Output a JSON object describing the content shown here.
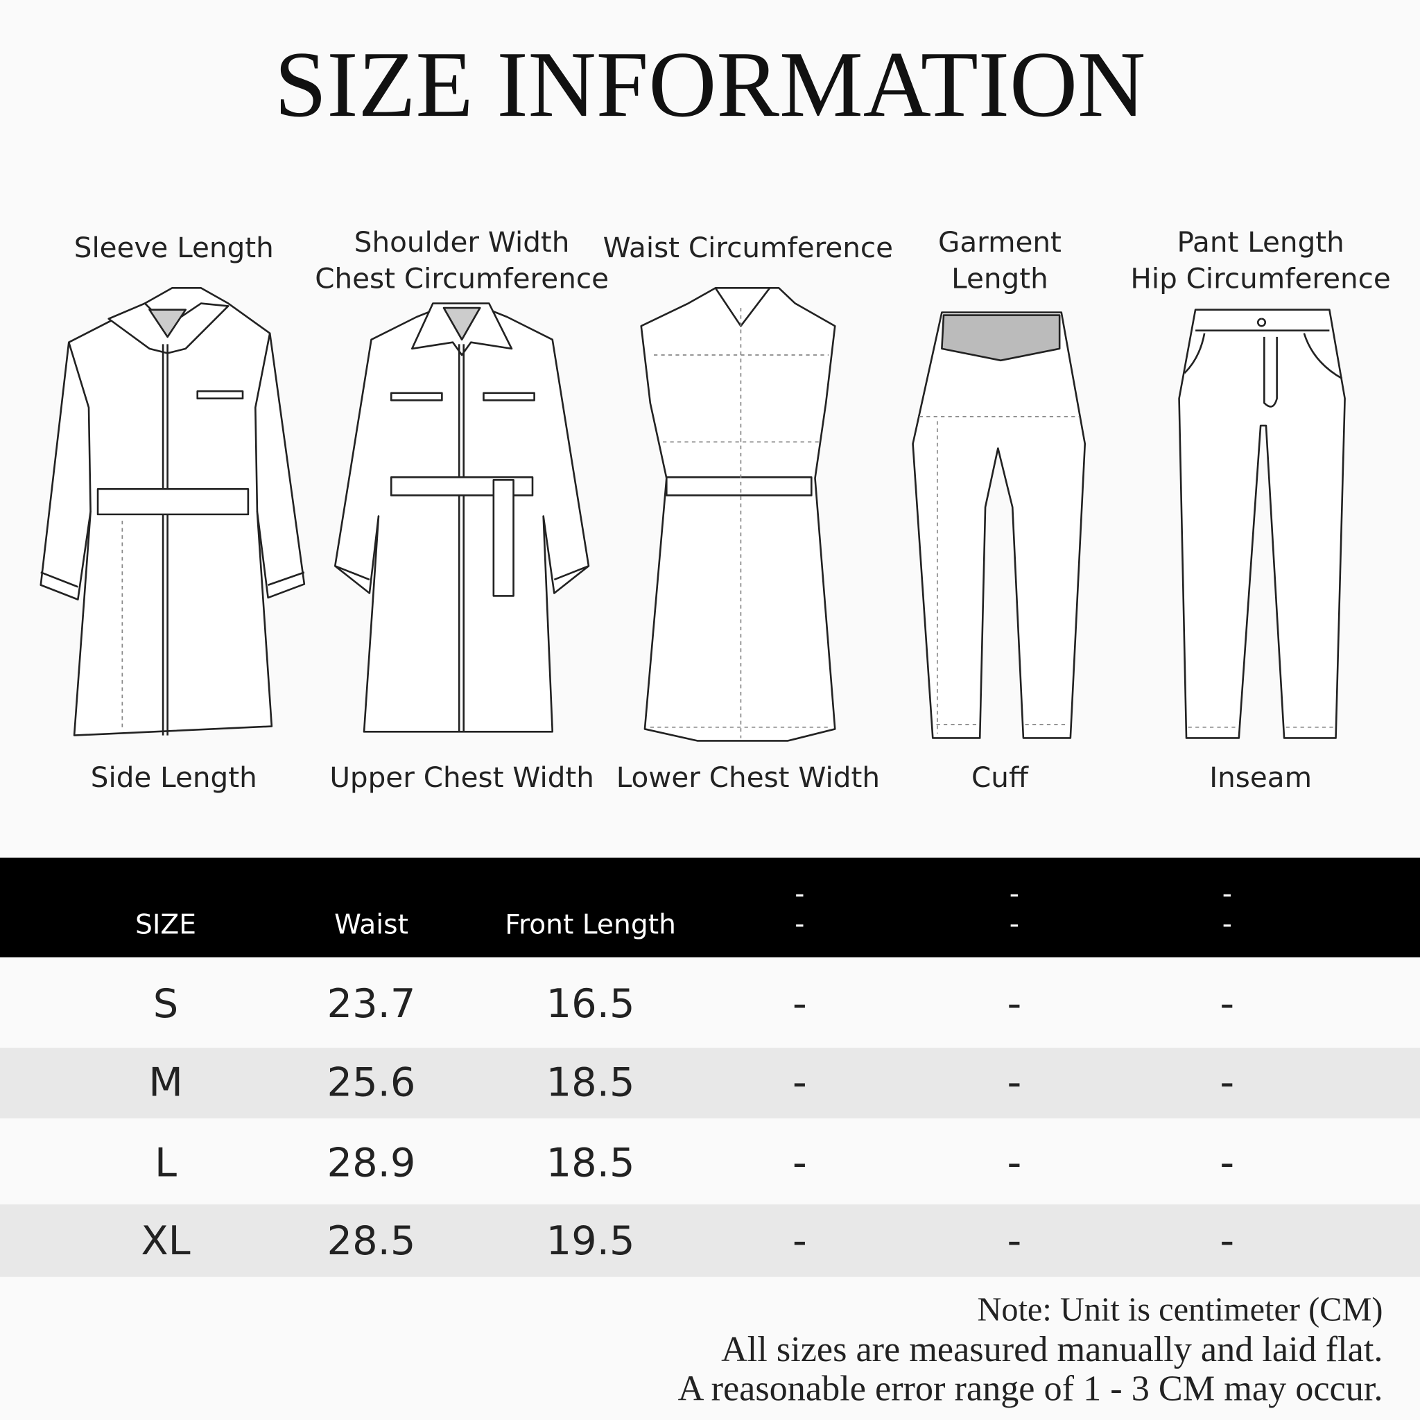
{
  "title": "SIZE INFORMATION",
  "garments": [
    {
      "top": [
        "Sleeve Length"
      ],
      "bottom": "Side Length"
    },
    {
      "top": [
        "Shoulder Width",
        "Chest Circumference"
      ],
      "bottom": "Upper Chest Width"
    },
    {
      "top": [
        "Waist Circumference"
      ],
      "bottom": "Lower Chest Width"
    },
    {
      "top": [
        "Garment",
        "Length"
      ],
      "bottom": "Cuff"
    },
    {
      "top": [
        "Pant Length",
        "Hip Circumference"
      ],
      "bottom": "Inseam"
    }
  ],
  "table": {
    "header": [
      [
        "SIZE"
      ],
      [
        "Waist"
      ],
      [
        "Front Length"
      ],
      [
        "-",
        "-"
      ],
      [
        "-",
        "-"
      ],
      [
        "-",
        "-"
      ]
    ],
    "rows": [
      [
        "S",
        23.7,
        16.5,
        "-",
        "-",
        "-"
      ],
      [
        "M",
        25.6,
        18.5,
        "-",
        "-",
        "-"
      ],
      [
        "L",
        28.9,
        18.5,
        "-",
        "-",
        "-"
      ],
      [
        "XL",
        28.5,
        19.5,
        "-",
        "-",
        "-"
      ]
    ]
  },
  "notes": [
    "Note: Unit is centimeter (CM)",
    "All sizes are measured manually and laid flat.",
    "A reasonable error range of 1 - 3 CM may occur."
  ]
}
